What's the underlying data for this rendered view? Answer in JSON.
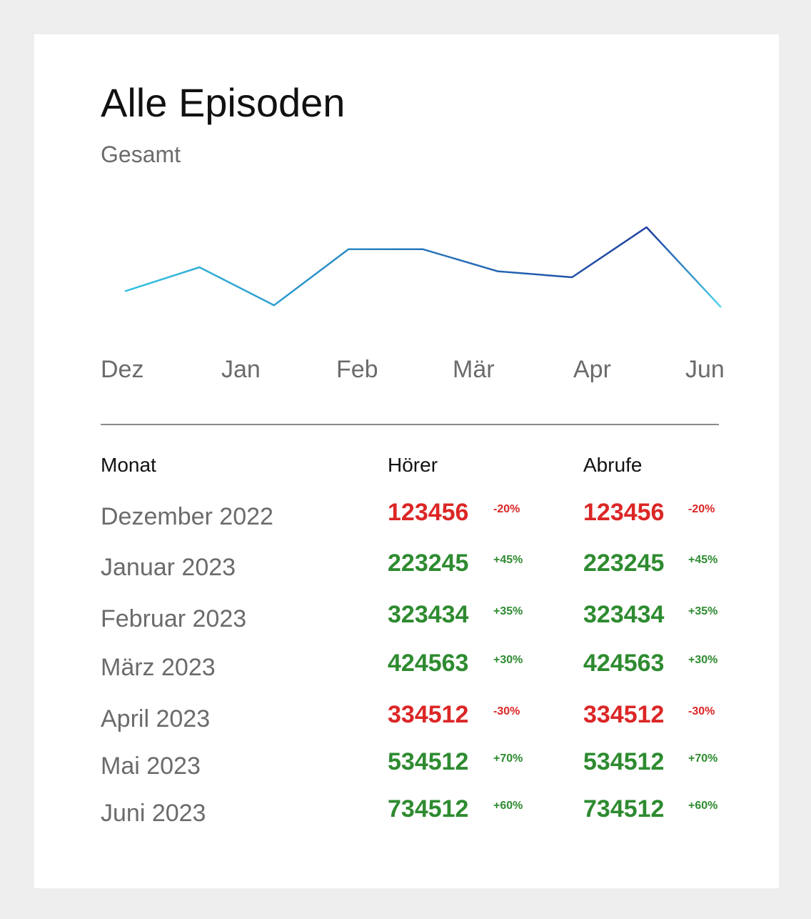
{
  "card": {
    "title": "Alle Episoden",
    "subtitle": "Gesamt"
  },
  "chart_data": {
    "type": "line",
    "x": [
      "Dez",
      "",
      "Jan",
      "",
      "Feb",
      "",
      "Mär",
      "",
      "Apr"
    ],
    "tick_labels": [
      "Dez",
      "Jan",
      "Feb",
      "Mär",
      "Apr",
      "Jun"
    ],
    "values": [
      43,
      55,
      36,
      64,
      64,
      53,
      50,
      75,
      35
    ],
    "ylim": [
      0,
      100
    ],
    "grid": false,
    "colors": {
      "line_start": "#33c1e0",
      "line_peak": "#1e3fa0",
      "line_end": "#4fd8ea"
    }
  },
  "table": {
    "headers": [
      "Monat",
      "Hörer",
      "Abrufe"
    ],
    "rows": [
      {
        "month": "Dezember 2022",
        "listeners": "123456",
        "listeners_change": "-20%",
        "plays": "123456",
        "plays_change": "-20%",
        "trend": "neg"
      },
      {
        "month": "Januar 2023",
        "listeners": "223245",
        "listeners_change": "+45%",
        "plays": "223245",
        "plays_change": "+45%",
        "trend": "pos"
      },
      {
        "month": "Februar 2023",
        "listeners": "323434",
        "listeners_change": "+35%",
        "plays": "323434",
        "plays_change": "+35%",
        "trend": "pos"
      },
      {
        "month": "März 2023",
        "listeners": "424563",
        "listeners_change": "+30%",
        "plays": "424563",
        "plays_change": "+30%",
        "trend": "pos"
      },
      {
        "month": "April 2023",
        "listeners": "334512",
        "listeners_change": "-30%",
        "plays": "334512",
        "plays_change": "-30%",
        "trend": "neg"
      },
      {
        "month": "Mai 2023",
        "listeners": "534512",
        "listeners_change": "+70%",
        "plays": "534512",
        "plays_change": "+70%",
        "trend": "pos"
      },
      {
        "month": "Juni 2023",
        "listeners": "734512",
        "listeners_change": "+60%",
        "plays": "734512",
        "plays_change": "+60%",
        "trend": "pos"
      }
    ]
  },
  "colors": {
    "negative": "#dc2626",
    "positive": "#2e8b30"
  }
}
